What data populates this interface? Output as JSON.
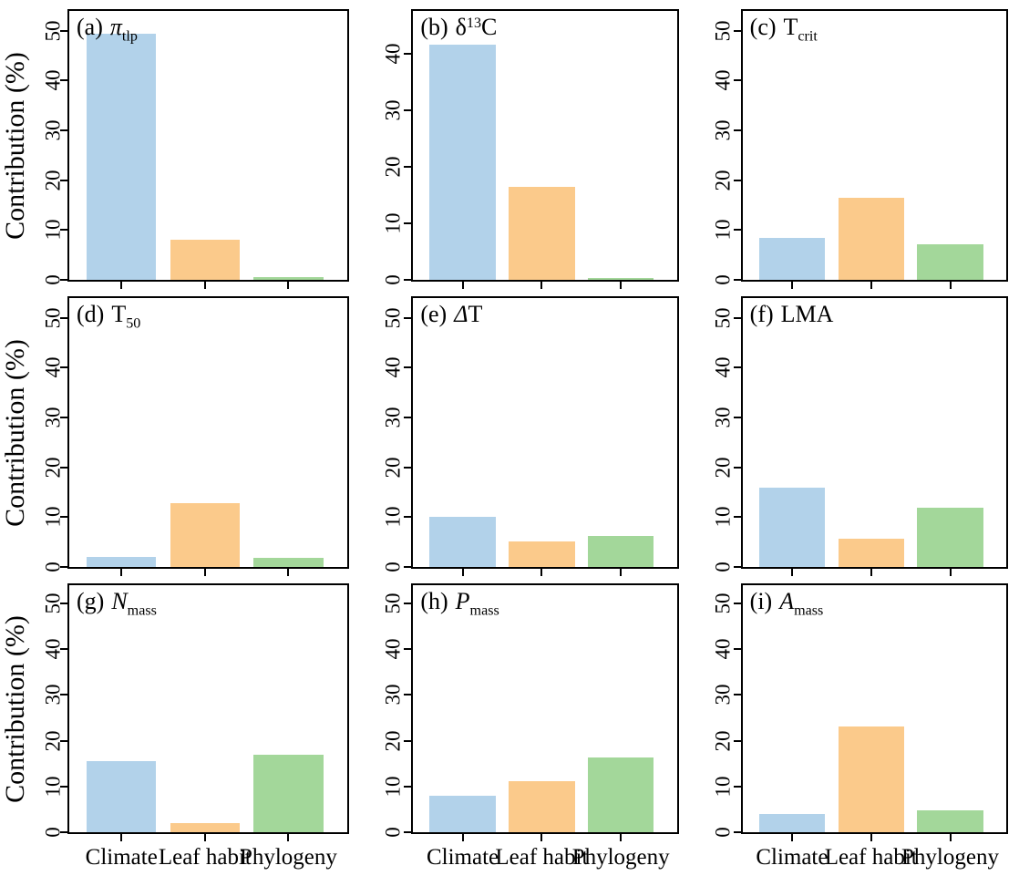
{
  "figure": {
    "ylabel": "Contribution (%)",
    "categories": [
      "Climate",
      "Leaf habit",
      "Phylogeny"
    ],
    "series_colors": {
      "Climate": "#B2D2EA",
      "Leaf habit": "#FBCA8B",
      "Phylogeny": "#A3D79A"
    },
    "axis_color": "#000000",
    "background": "#FFFFFF"
  },
  "chart_data": [
    {
      "type": "bar",
      "id": "a",
      "title": {
        "prefix": "(a)",
        "symbol": "π",
        "italic": true,
        "sup": "",
        "suffix": "",
        "sub": "tlp"
      },
      "categories": [
        "Climate",
        "Leaf habit",
        "Phylogeny"
      ],
      "values": [
        49.5,
        8.0,
        0.6
      ],
      "yticks": [
        0,
        10,
        20,
        30,
        40,
        50
      ],
      "ylim": [
        0,
        54
      ],
      "ylabel": "Contribution (%)"
    },
    {
      "type": "bar",
      "id": "b",
      "title": {
        "prefix": "(b)",
        "symbol": "δ",
        "italic": false,
        "sup": "13",
        "suffix": "C",
        "sub": ""
      },
      "categories": [
        "Climate",
        "Leaf habit",
        "Phylogeny"
      ],
      "values": [
        41.5,
        16.5,
        0.3
      ],
      "yticks": [
        0,
        10,
        20,
        30,
        40
      ],
      "ylim": [
        0,
        47.5
      ]
    },
    {
      "type": "bar",
      "id": "c",
      "title": {
        "prefix": "(c)",
        "symbol": "T",
        "italic": false,
        "sup": "",
        "suffix": "",
        "sub": "crit"
      },
      "categories": [
        "Climate",
        "Leaf habit",
        "Phylogeny"
      ],
      "values": [
        8.5,
        16.5,
        7.2
      ],
      "yticks": [
        0,
        10,
        20,
        30,
        40,
        50
      ],
      "ylim": [
        0,
        54
      ]
    },
    {
      "type": "bar",
      "id": "d",
      "title": {
        "prefix": "(d)",
        "symbol": "T",
        "italic": false,
        "sup": "",
        "suffix": "",
        "sub": "50"
      },
      "categories": [
        "Climate",
        "Leaf habit",
        "Phylogeny"
      ],
      "values": [
        2.0,
        12.9,
        1.8
      ],
      "yticks": [
        0,
        10,
        20,
        30,
        40,
        50
      ],
      "ylim": [
        0,
        54
      ],
      "ylabel": "Contribution (%)"
    },
    {
      "type": "bar",
      "id": "e",
      "title": {
        "prefix": "(e)",
        "symbol": "Δ",
        "italic": true,
        "sup": "",
        "suffix": "T",
        "sub": ""
      },
      "categories": [
        "Climate",
        "Leaf habit",
        "Phylogeny"
      ],
      "values": [
        10.0,
        5.1,
        6.3
      ],
      "yticks": [
        0,
        10,
        20,
        30,
        40,
        50
      ],
      "ylim": [
        0,
        54
      ]
    },
    {
      "type": "bar",
      "id": "f",
      "title": {
        "prefix": "(f)",
        "symbol": "LMA",
        "italic": false,
        "sup": "",
        "suffix": "",
        "sub": ""
      },
      "categories": [
        "Climate",
        "Leaf habit",
        "Phylogeny"
      ],
      "values": [
        16.0,
        5.6,
        11.9
      ],
      "yticks": [
        0,
        10,
        20,
        30,
        40,
        50
      ],
      "ylim": [
        0,
        54
      ]
    },
    {
      "type": "bar",
      "id": "g",
      "title": {
        "prefix": "(g)",
        "symbol": "N",
        "italic": true,
        "sup": "",
        "suffix": "",
        "sub": "mass"
      },
      "categories": [
        "Climate",
        "Leaf habit",
        "Phylogeny"
      ],
      "values": [
        15.5,
        1.9,
        17.0
      ],
      "yticks": [
        0,
        10,
        20,
        30,
        40,
        50
      ],
      "ylim": [
        0,
        54
      ],
      "ylabel": "Contribution (%)"
    },
    {
      "type": "bar",
      "id": "h",
      "title": {
        "prefix": "(h)",
        "symbol": "P",
        "italic": true,
        "sup": "",
        "suffix": "",
        "sub": "mass"
      },
      "categories": [
        "Climate",
        "Leaf habit",
        "Phylogeny"
      ],
      "values": [
        8.0,
        11.2,
        16.3
      ],
      "yticks": [
        0,
        10,
        20,
        30,
        40,
        50
      ],
      "ylim": [
        0,
        54
      ]
    },
    {
      "type": "bar",
      "id": "i",
      "title": {
        "prefix": "(i)",
        "symbol": "A",
        "italic": true,
        "sup": "",
        "suffix": "",
        "sub": "mass"
      },
      "categories": [
        "Climate",
        "Leaf habit",
        "Phylogeny"
      ],
      "values": [
        3.9,
        23.2,
        4.8
      ],
      "yticks": [
        0,
        10,
        20,
        30,
        40,
        50
      ],
      "ylim": [
        0,
        54
      ]
    }
  ]
}
